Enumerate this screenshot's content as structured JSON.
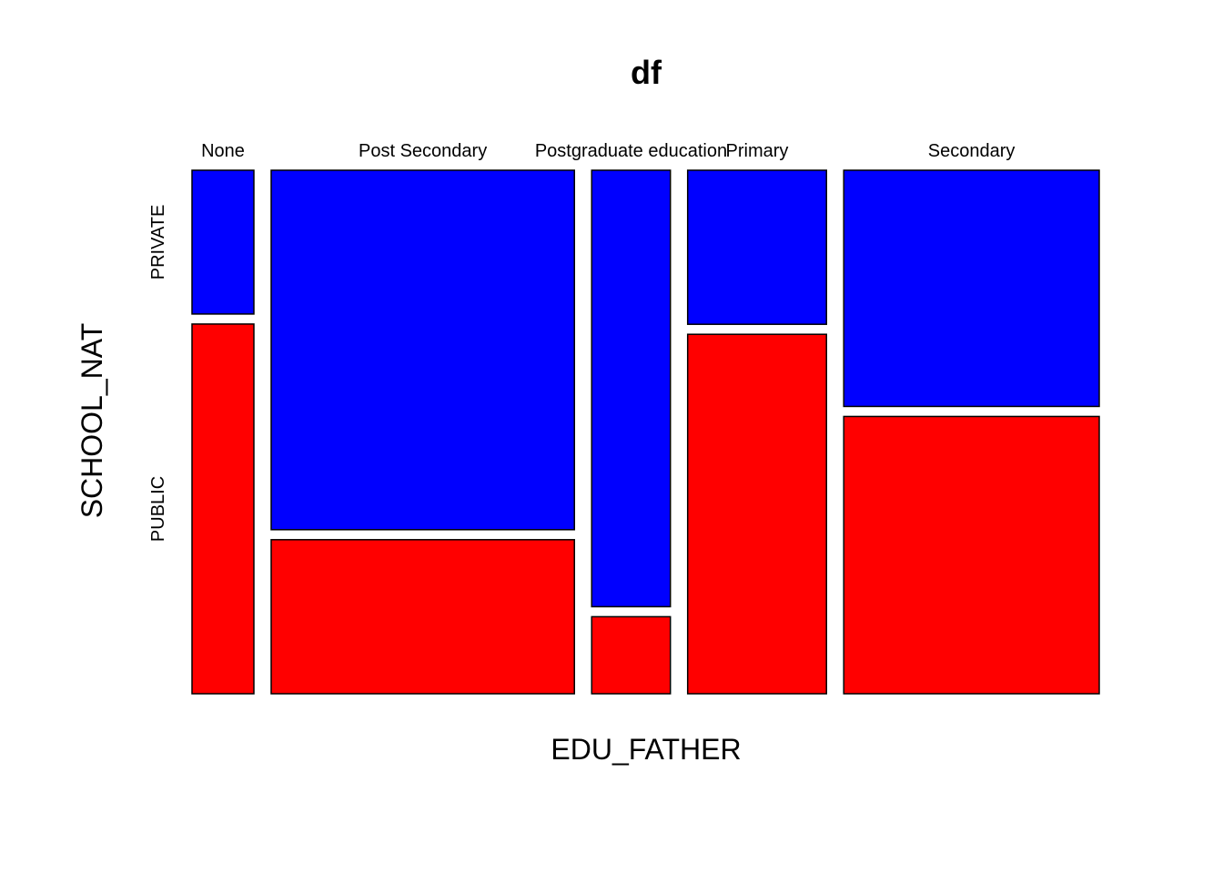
{
  "chart_data": {
    "type": "mosaic",
    "title": "df",
    "xlabel": "EDU_FATHER",
    "ylabel": "SCHOOL_NAT",
    "categories": [
      "None",
      "Post Secondary",
      "Postgraduate education",
      "Primary",
      "Secondary"
    ],
    "column_share": [
      0.07,
      0.343,
      0.089,
      0.157,
      0.289
    ],
    "series": [
      {
        "name": "PRIVATE",
        "color": "#0000ff",
        "shares": [
          0.28,
          0.7,
          0.85,
          0.3,
          0.46
        ]
      },
      {
        "name": "PUBLIC",
        "color": "#ff0000",
        "shares": [
          0.72,
          0.3,
          0.15,
          0.7,
          0.54
        ]
      }
    ],
    "legend": "none",
    "grid": false
  }
}
